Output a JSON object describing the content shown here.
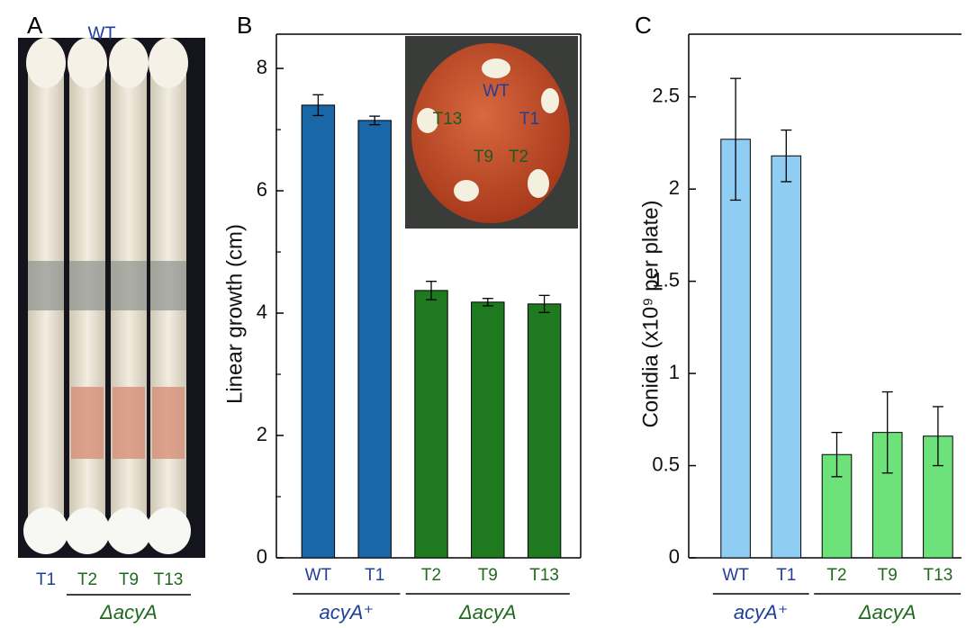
{
  "photo_panel": {
    "panel": "A",
    "top_label": "WT",
    "tubes": [
      "T1",
      "T2",
      "T9",
      "T13"
    ],
    "group_label": "ΔacyA"
  },
  "chart_data": [
    {
      "type": "bar",
      "panel": "B",
      "ylabel": "Linear growth (cm)",
      "categories": [
        "WT",
        "T1",
        "T2",
        "T9",
        "T13"
      ],
      "values": [
        7.4,
        7.15,
        4.37,
        4.18,
        4.15
      ],
      "errors": [
        0.17,
        0.07,
        0.15,
        0.06,
        0.14
      ],
      "colors": [
        "#1a67a8",
        "#1a67a8",
        "#1f7a1f",
        "#1f7a1f",
        "#1f7a1f"
      ],
      "label_colors": [
        "#1f3f99",
        "#1f3f99",
        "#1f6a1f",
        "#1f6a1f",
        "#1f6a1f"
      ],
      "groups": [
        {
          "label": "acyA⁺",
          "categories": [
            "WT",
            "T1"
          ],
          "color": "#1f3f99"
        },
        {
          "label": "ΔacyA",
          "categories": [
            "T2",
            "T9",
            "T13"
          ],
          "color": "#1f6a1f"
        }
      ],
      "ylim": [
        0,
        8.56
      ],
      "yticks": [
        0,
        2,
        4,
        6,
        8
      ],
      "yminorticks": [
        1,
        3,
        5,
        7
      ],
      "inset_labels": [
        "WT",
        "T13",
        "T1",
        "T9",
        "T2"
      ]
    },
    {
      "type": "bar",
      "panel": "C",
      "ylabel": "Conidia (x10⁹ per plate)",
      "categories": [
        "WT",
        "T1",
        "T2",
        "T9",
        "T13"
      ],
      "values": [
        2.27,
        2.18,
        0.56,
        0.68,
        0.66
      ],
      "errors": [
        0.33,
        0.14,
        0.12,
        0.22,
        0.16
      ],
      "colors": [
        "#8fcdf5",
        "#8fcdf5",
        "#6ee27a",
        "#6ee27a",
        "#6ee27a"
      ],
      "label_colors": [
        "#1f3f99",
        "#1f3f99",
        "#1f6a1f",
        "#1f6a1f",
        "#1f6a1f"
      ],
      "groups": [
        {
          "label": "acyA⁺",
          "categories": [
            "WT",
            "T1"
          ],
          "color": "#1f3f99"
        },
        {
          "label": "ΔacyA",
          "categories": [
            "T2",
            "T9",
            "T13"
          ],
          "color": "#1f6a1f"
        }
      ],
      "ylim": [
        0,
        2.84
      ],
      "yticks": [
        0,
        0.5,
        1,
        1.5,
        2,
        2.5
      ],
      "yminorticks": []
    }
  ]
}
